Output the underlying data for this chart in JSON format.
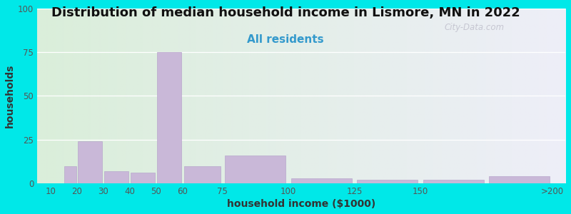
{
  "title": "Distribution of median household income in Lismore, MN in 2022",
  "subtitle": "All residents",
  "xlabel": "household income ($1000)",
  "ylabel": "households",
  "bar_color": "#c9b8d8",
  "bar_edgecolor": "#b8a8cc",
  "background_outer": "#00e8e8",
  "background_inner_left": "#daeeda",
  "background_inner_right": "#eeeeF8",
  "ylim": [
    0,
    100
  ],
  "yticks": [
    0,
    25,
    50,
    75,
    100
  ],
  "tick_labels": [
    "10",
    "20",
    "30",
    "40",
    "50",
    "60",
    "75",
    "100",
    "125",
    "150",
    ">200"
  ],
  "tick_positions": [
    10,
    20,
    30,
    40,
    50,
    60,
    75,
    100,
    125,
    150,
    200
  ],
  "bar_lefts": [
    10,
    15,
    20,
    30,
    40,
    50,
    60,
    75,
    100,
    125,
    150,
    175
  ],
  "bar_rights": [
    15,
    20,
    30,
    40,
    50,
    60,
    75,
    100,
    125,
    150,
    175,
    200
  ],
  "values": [
    0,
    10,
    24,
    7,
    6,
    75,
    10,
    16,
    3,
    2,
    2,
    4
  ],
  "title_fontsize": 13,
  "subtitle_fontsize": 11,
  "axis_label_fontsize": 10,
  "tick_fontsize": 8.5,
  "watermark": "City-Data.com"
}
